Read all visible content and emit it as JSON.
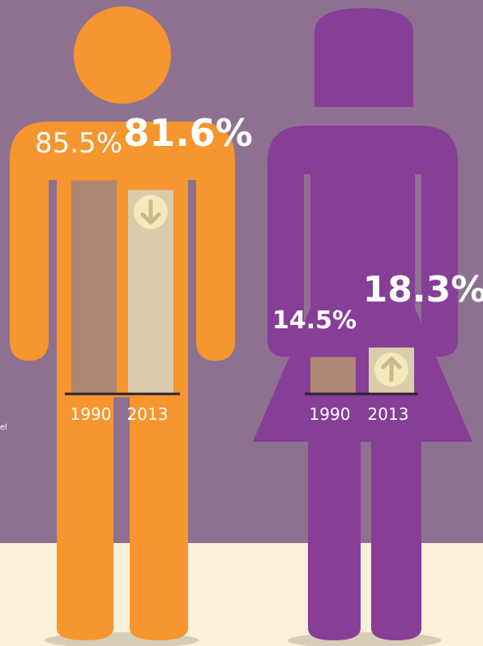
{
  "chart_data": [
    {
      "type": "bar",
      "categories": [
        "1990",
        "2013"
      ],
      "values": [
        85.5,
        81.6
      ],
      "value_labels": [
        "85.5%",
        "81.6%"
      ],
      "colors": [
        "#ad8773",
        "#dacbad"
      ]
    },
    {
      "type": "bar",
      "categories": [
        "1990",
        "2013"
      ],
      "values": [
        14.5,
        18.3
      ],
      "value_labels": [
        "14.5%",
        "18.3%"
      ],
      "colors": [
        "#ad8773",
        "#dacbad"
      ]
    }
  ],
  "note": "el"
}
